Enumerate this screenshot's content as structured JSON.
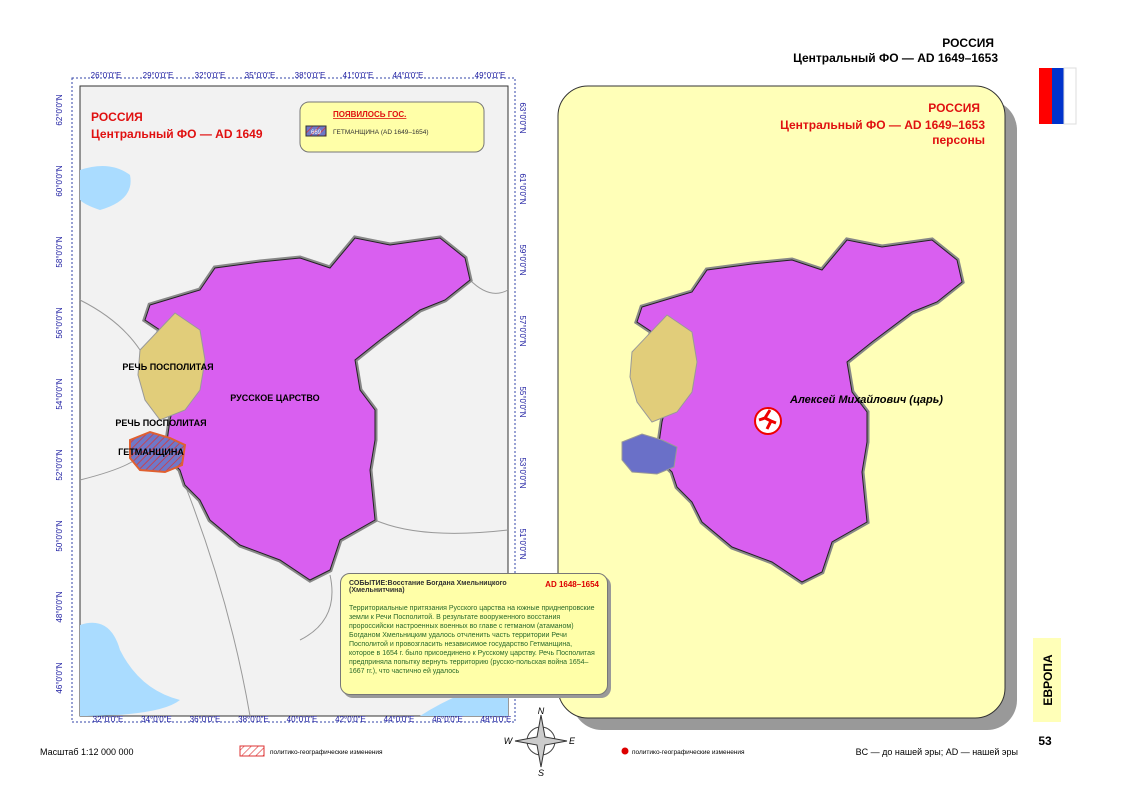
{
  "header": {
    "country": "РОССИЯ",
    "subtitle": "Центральный ФО — AD 1649–1653"
  },
  "left_map": {
    "title": "РОССИЯ",
    "subtitle": "Центральный ФО — AD 1649",
    "legend": {
      "title": "ПОЯВИЛОСЬ ГОС.",
      "code": "669",
      "entry": "ГЕТМАНЩИНА (AD 1649–1654)"
    },
    "labels": [
      "РЕЧЬ ПОСПОЛИТАЯ",
      "РЕЧЬ ПОСПОЛИТАЯ",
      "ГЕТМАНЩИНА",
      "РУССКОЕ ЦАРСТВО"
    ],
    "top_ticks": [
      "26°0'0\"E",
      "29°0'0\"E",
      "32°0'0\"E",
      "35°0'0\"E",
      "38°0'0\"E",
      "41°0'0\"E",
      "44°0'0\"E",
      "49°0'0\"E"
    ],
    "bottom_ticks": [
      "32°0'0\"E",
      "34°0'0\"E",
      "36°0'0\"E",
      "38°0'0\"E",
      "40°0'0\"E",
      "42°0'0\"E",
      "44°0'0\"E",
      "46°0'0\"E",
      "48°0'0\"E"
    ],
    "left_ticks": [
      "62°0'0\"N",
      "60°0'0\"N",
      "58°0'0\"N",
      "56°0'0\"N",
      "54°0'0\"N",
      "52°0'0\"N",
      "50°0'0\"N",
      "48°0'0\"N",
      "46°0'0\"N"
    ],
    "right_ticks": [
      "63°0'0\"N",
      "61°0'0\"N",
      "59°0'0\"N",
      "57°0'0\"N",
      "55°0'0\"N",
      "53°0'0\"N",
      "51°0'0\"N"
    ]
  },
  "event": {
    "title": "СОБЫТИЕ:Восстание Богдана Хмельницкого (Хмельнитчина)",
    "date": "AD 1648–1654",
    "text": "Территориальные притязания Русского царства на южные приднепровские земли к Речи Посполитой. В результате вооруженного восстания пророссийски настроенных военных во главе с гетманом (атаманом) Богданом Хмельницким удалось отчленить часть территории Речи Посполитой и провозгласить независимое государство Гетманщина, которое в 1654 г. было присоединено к Русскому царству. Речь Посполитая предприняла попытку вернуть территорию (русско-польская война 1654–1667 гг.), что частично ей удалось"
  },
  "right_map": {
    "title": "РОССИЯ",
    "subtitle": "Центральный ФО — AD 1649–1653",
    "caption": "персоны",
    "person": "Алексей Михайлович (царь)"
  },
  "compass": [
    "N",
    "W",
    "E",
    "S"
  ],
  "footer": {
    "scale": "Масштаб 1:12 000 000",
    "legend_left": "политико-географические изменения",
    "legend_right": "политико-географические изменения",
    "note": "BC — до нашей эры; AD — нашей эры",
    "region": "ЕВРОПА",
    "page": "53"
  }
}
